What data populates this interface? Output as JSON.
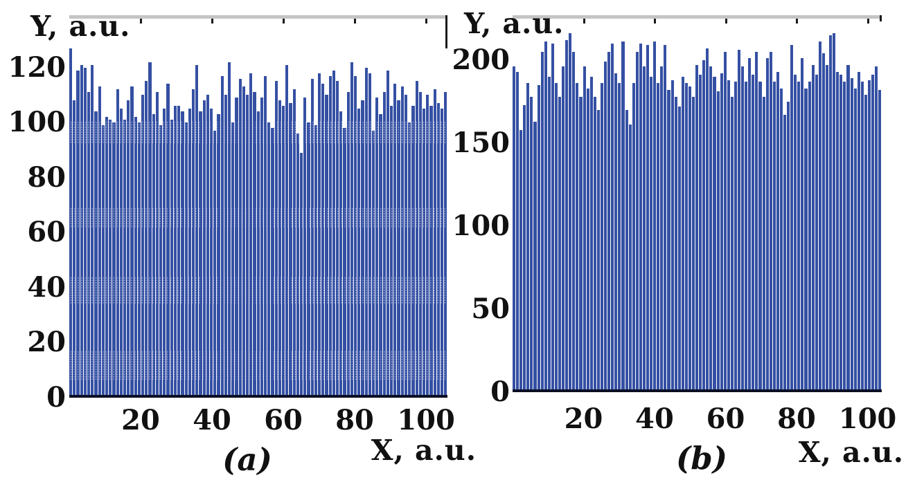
{
  "colors": {
    "bar": "#3550a3",
    "axis_line": "#0b0f24",
    "plot_top_border": "#c4c4c4",
    "text": "#111111",
    "texture_dot": "#d2d9f4"
  },
  "chart_data": [
    {
      "type": "bar",
      "panel_label": "(a)",
      "ylabel": "Y, a.u.",
      "xlabel": "X, a.u.",
      "y_ticks": [
        0,
        20,
        40,
        60,
        80,
        100,
        120
      ],
      "x_ticks": [
        20,
        40,
        60,
        80,
        100
      ],
      "xlim_view": [
        0,
        106
      ],
      "ylim_view": [
        0,
        139
      ],
      "grid": false,
      "legend": false,
      "values": [
        127,
        108,
        119,
        121,
        120,
        111,
        121,
        104,
        113,
        99,
        102,
        101,
        100,
        112,
        105,
        101,
        108,
        113,
        102,
        100,
        110,
        115,
        122,
        103,
        111,
        99,
        105,
        114,
        101,
        106,
        106,
        104,
        100,
        105,
        112,
        121,
        104,
        108,
        110,
        105,
        97,
        103,
        117,
        110,
        122,
        100,
        109,
        116,
        113,
        110,
        118,
        111,
        104,
        109,
        117,
        100,
        98,
        115,
        108,
        106,
        121,
        107,
        112,
        96,
        89,
        109,
        100,
        116,
        99,
        118,
        114,
        110,
        117,
        119,
        115,
        104,
        98,
        111,
        122,
        117,
        105,
        108,
        120,
        118,
        97,
        109,
        103,
        111,
        119,
        106,
        114,
        108,
        113,
        110,
        100,
        106,
        115,
        111,
        105,
        110,
        106,
        112,
        107,
        105,
        111
      ]
    },
    {
      "type": "bar",
      "panel_label": "(b)",
      "ylabel": "Y, a.u.",
      "xlabel": "X, a.u.",
      "y_ticks": [
        0,
        50,
        100,
        150,
        200
      ],
      "x_ticks": [
        20,
        40,
        60,
        80,
        100
      ],
      "xlim_view": [
        0,
        104
      ],
      "ylim_view": [
        0,
        227
      ],
      "grid": false,
      "legend": false,
      "values": [
        196,
        193,
        158,
        173,
        186,
        178,
        163,
        185,
        205,
        211,
        190,
        210,
        186,
        178,
        196,
        212,
        216,
        205,
        186,
        178,
        196,
        183,
        190,
        178,
        170,
        186,
        199,
        205,
        210,
        192,
        186,
        211,
        170,
        161,
        186,
        205,
        210,
        196,
        209,
        190,
        211,
        186,
        196,
        209,
        182,
        188,
        178,
        172,
        190,
        186,
        184,
        178,
        197,
        191,
        200,
        207,
        196,
        190,
        181,
        192,
        205,
        188,
        178,
        187,
        206,
        196,
        187,
        201,
        191,
        205,
        187,
        178,
        201,
        205,
        187,
        193,
        183,
        167,
        175,
        209,
        191,
        187,
        201,
        183,
        187,
        197,
        191,
        211,
        204,
        197,
        215,
        216,
        193,
        191,
        187,
        197,
        189,
        183,
        193,
        187,
        179,
        188,
        191,
        196,
        182
      ]
    }
  ]
}
